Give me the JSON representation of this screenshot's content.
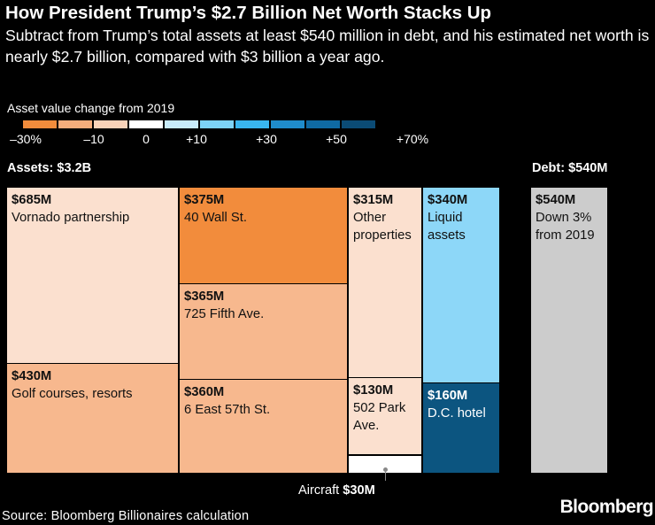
{
  "chart_data": {
    "type": "treemap",
    "title": "How President Trump’s $2.7 Billion Net Worth Stacks Up",
    "subtitle": "Subtract from Trump’s total assets at least $540 million in debt, and his estimated net worth is nearly $2.7 billion, compared with $3 billion a year ago.",
    "legend": {
      "title": "Asset value change from 2019",
      "colors": [
        "#f28c3c",
        "#f5ad7c",
        "#f9d2b8",
        "#ffffff",
        "#c9ecfb",
        "#7dd3f7",
        "#39b6ef",
        "#1f8ccc",
        "#0f6aa3",
        "#0b4b75"
      ],
      "labels": [
        "–30%",
        "–10",
        "0",
        "+10",
        "+30",
        "+50",
        "+70%"
      ]
    },
    "assets_label": "Assets: $3.2B",
    "debt_label": "Debt: $540M",
    "assets": [
      {
        "value": "$685M",
        "label": "Vornado partnership",
        "color": "#fbe0cf"
      },
      {
        "value": "$430M",
        "label": "Golf courses, resorts",
        "color": "#f7b88e"
      },
      {
        "value": "$375M",
        "label": "40 Wall St.",
        "color": "#f28c3c"
      },
      {
        "value": "$365M",
        "label": "725 Fifth Ave.",
        "color": "#f7b88e"
      },
      {
        "value": "$360M",
        "label": "6 East 57th St.",
        "color": "#f7b88e"
      },
      {
        "value": "$315M",
        "label": "Other properties",
        "color": "#fbe0cf"
      },
      {
        "value": "$130M",
        "label": "502 Park Ave.",
        "color": "#fbe0cf"
      },
      {
        "value": "$340M",
        "label": "Liquid assets",
        "color": "#8dd7f8"
      },
      {
        "value": "$160M",
        "label": "D.C. hotel",
        "color": "#0c5580"
      }
    ],
    "aircraft": {
      "prefix": "Aircraft",
      "value": "$30M",
      "color": "#ffffff"
    },
    "debt": {
      "value": "$540M",
      "label": "Down 3% from 2019",
      "color": "#cccccc"
    }
  },
  "footer": {
    "source": "Source: Bloomberg Billionaires calculation",
    "brand": "Bloomberg"
  }
}
